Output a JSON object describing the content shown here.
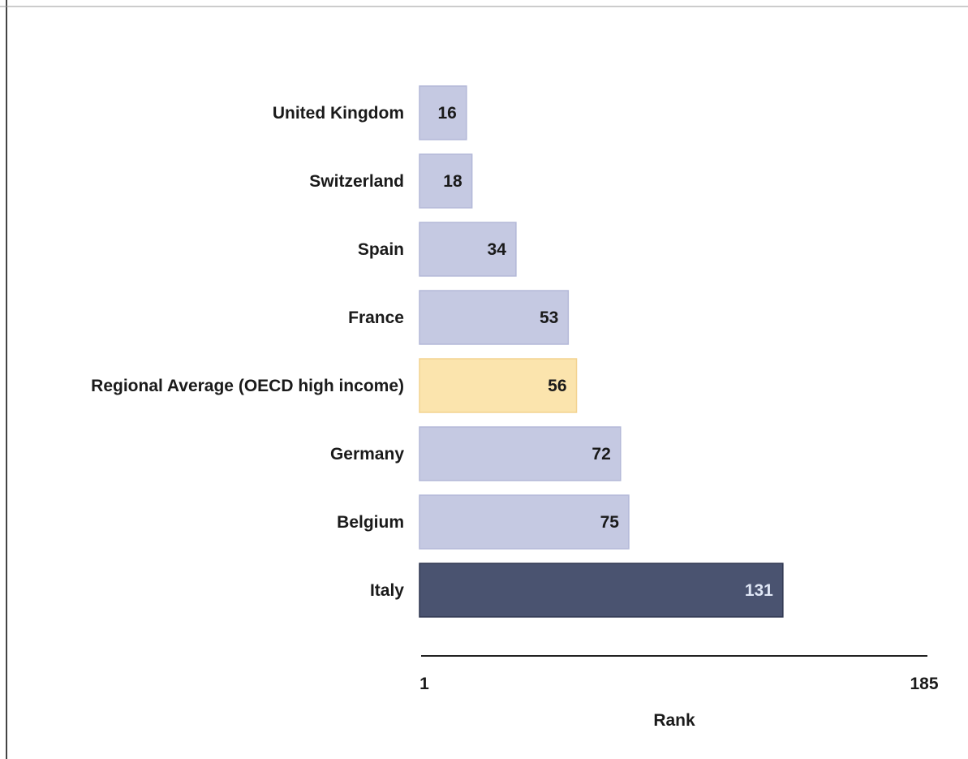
{
  "chart_data": {
    "type": "bar",
    "orientation": "horizontal",
    "title": "",
    "xlabel": "Rank",
    "ylabel": "",
    "xlim": [
      1,
      185
    ],
    "x_tick_labels": [
      "1",
      "185"
    ],
    "categories": [
      "United Kingdom",
      "Switzerland",
      "Spain",
      "France",
      "Regional Average (OECD high income)",
      "Germany",
      "Belgium",
      "Italy"
    ],
    "values": [
      16,
      18,
      34,
      53,
      56,
      72,
      75,
      131
    ],
    "bar_kinds": [
      "country",
      "country",
      "country",
      "country",
      "average",
      "country",
      "country",
      "highlight"
    ],
    "grid": false,
    "legend": "none",
    "colors": {
      "country": "#c5c9e2",
      "country_edge": "#b3b8d8",
      "average": "#fbe4ad",
      "average_edge": "#f3d391",
      "highlight": "#4a5370",
      "highlight_edge": "#2f3750",
      "label_dark": "#1a1a1a",
      "label_on_highlight": "#dfe6f5",
      "axis": "#222222"
    }
  }
}
